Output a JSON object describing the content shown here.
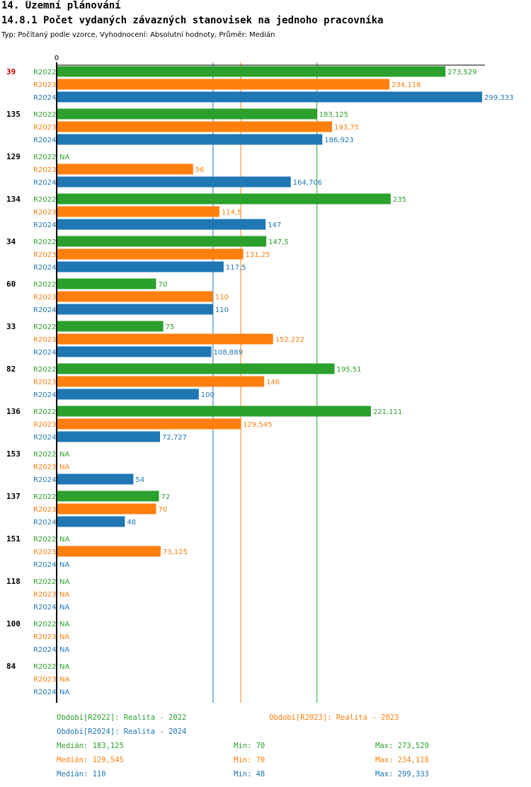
{
  "heading": "14. Územní plánování",
  "subheading": "14.8.1 Počet vydaných závazných stanovisek na jednoho pracovníka",
  "description": "Typ: Počítaný podle vzorce, Vyhodnocení: Absolutní hodnoty, Průměr: Medián",
  "colors": {
    "R2022": "#2ca02c",
    "R2023": "#ff7f0e",
    "R2024": "#1f77b4",
    "highlight": "#cc0000",
    "axis": "#000000"
  },
  "chart_data": {
    "type": "bar",
    "orientation": "horizontal",
    "xlim": [
      0,
      299.333
    ],
    "x_tick_label": "0",
    "series_names": [
      "R2022",
      "R2023",
      "R2024"
    ],
    "groups": [
      {
        "id": "39",
        "highlight": true,
        "labels": [
          "273,529",
          "234,118",
          "299,333"
        ],
        "values": [
          273.529,
          234.118,
          299.333
        ]
      },
      {
        "id": "135",
        "labels": [
          "183,125",
          "193,75",
          "186,923"
        ],
        "values": [
          183.125,
          193.75,
          186.923
        ]
      },
      {
        "id": "129",
        "labels": [
          "NA",
          "96",
          "164,706"
        ],
        "values": [
          null,
          96,
          164.706
        ]
      },
      {
        "id": "134",
        "labels": [
          "235",
          "114,5",
          "147"
        ],
        "values": [
          235,
          114.5,
          147
        ]
      },
      {
        "id": "34",
        "labels": [
          "147,5",
          "131,25",
          "117,5"
        ],
        "values": [
          147.5,
          131.25,
          117.5
        ]
      },
      {
        "id": "60",
        "labels": [
          "70",
          "110",
          "110"
        ],
        "values": [
          70,
          110,
          110
        ]
      },
      {
        "id": "33",
        "labels": [
          "75",
          "152,222",
          "108,889"
        ],
        "values": [
          75,
          152.222,
          108.889
        ]
      },
      {
        "id": "82",
        "labels": [
          "195,51",
          "146",
          "100"
        ],
        "values": [
          195.51,
          146,
          100
        ]
      },
      {
        "id": "136",
        "labels": [
          "221,111",
          "129,545",
          "72,727"
        ],
        "values": [
          221.111,
          129.545,
          72.727
        ]
      },
      {
        "id": "153",
        "labels": [
          "NA",
          "NA",
          "54"
        ],
        "values": [
          null,
          null,
          54
        ]
      },
      {
        "id": "137",
        "labels": [
          "72",
          "70",
          "48"
        ],
        "values": [
          72,
          70,
          48
        ]
      },
      {
        "id": "151",
        "labels": [
          "NA",
          "73,125",
          "NA"
        ],
        "values": [
          null,
          73.125,
          null
        ]
      },
      {
        "id": "118",
        "labels": [
          "NA",
          "NA",
          "NA"
        ],
        "values": [
          null,
          null,
          null
        ]
      },
      {
        "id": "100",
        "labels": [
          "NA",
          "NA",
          "NA"
        ],
        "values": [
          null,
          null,
          null
        ]
      },
      {
        "id": "84",
        "labels": [
          "NA",
          "NA",
          "NA"
        ],
        "values": [
          null,
          null,
          null
        ]
      }
    ],
    "median_lines": [
      {
        "series": "R2022",
        "value": 183.125
      },
      {
        "series": "R2023",
        "value": 129.545
      },
      {
        "series": "R2024",
        "value": 110
      }
    ]
  },
  "legend": {
    "periods": [
      {
        "series": "R2022",
        "text": "Období[R2022]: Realita - 2022"
      },
      {
        "series": "R2023",
        "text": "Období[R2023]: Realita - 2023"
      },
      {
        "series": "R2024",
        "text": "Období[R2024]: Realita - 2024"
      }
    ],
    "stats": [
      {
        "series": "R2022",
        "median": "Medián: 183,125",
        "min": "Min: 70",
        "max": "Max: 273,529"
      },
      {
        "series": "R2023",
        "median": "Medián: 129,545",
        "min": "Min: 70",
        "max": "Max: 234,118"
      },
      {
        "series": "R2024",
        "median": "Medián: 110",
        "min": "Min: 48",
        "max": "Max: 299,333"
      }
    ]
  }
}
